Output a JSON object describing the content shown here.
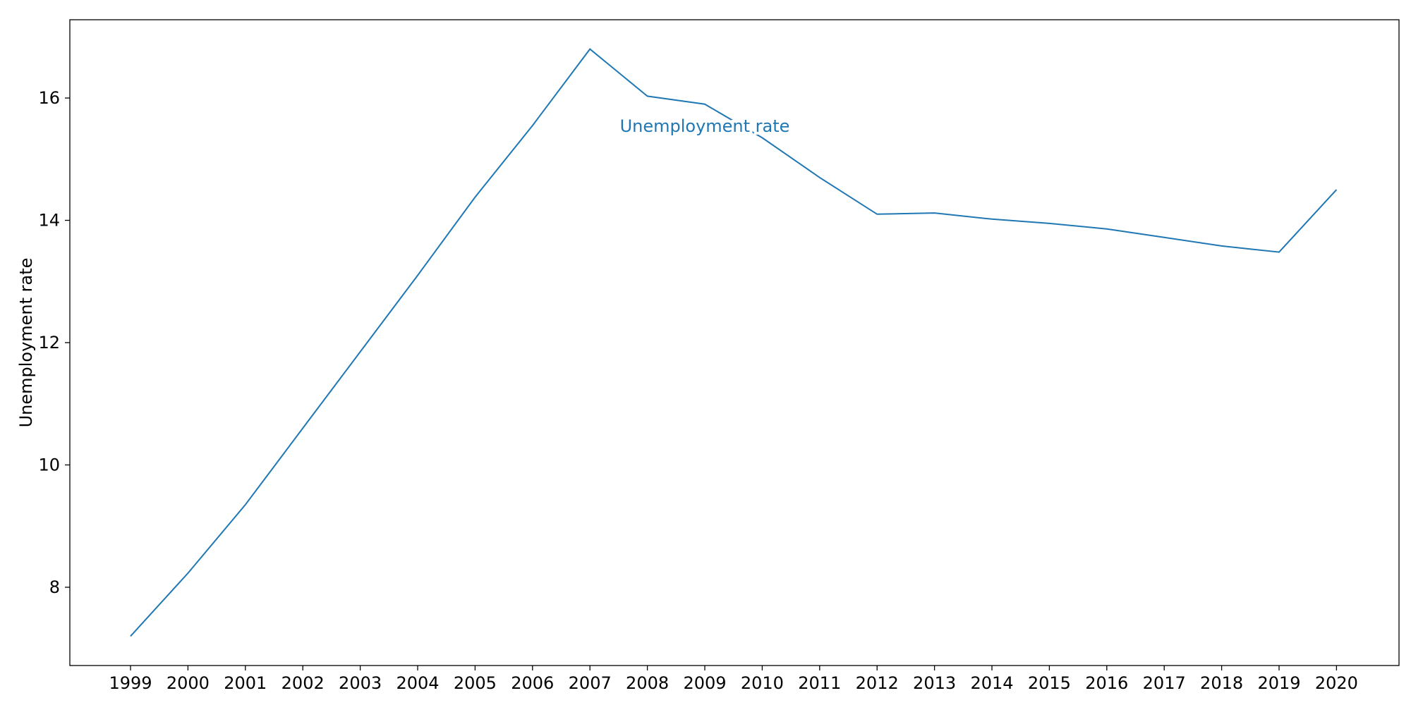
{
  "chart_data": {
    "type": "line",
    "title": "",
    "xlabel": "",
    "ylabel": "Unemployment rate",
    "grid": false,
    "x": [
      "1999",
      "2000",
      "2001",
      "2002",
      "2003",
      "2004",
      "2005",
      "2006",
      "2007",
      "2008",
      "2009",
      "2010",
      "2011",
      "2012",
      "2013",
      "2014",
      "2015",
      "2016",
      "2017",
      "2018",
      "2019",
      "2020"
    ],
    "series": [
      {
        "name": "Unemployment rate",
        "color": "#1f77b4",
        "values": [
          7.2,
          8.23,
          9.35,
          10.6,
          11.85,
          13.1,
          14.38,
          15.55,
          16.8,
          16.03,
          15.9,
          15.35,
          14.7,
          14.1,
          14.12,
          14.02,
          13.95,
          13.86,
          13.72,
          13.58,
          13.48,
          14.5
        ]
      }
    ],
    "ylim": [
      6.72,
      17.28
    ],
    "yticks": [
      8,
      10,
      12,
      14,
      16
    ],
    "annotation": {
      "text": "Unemployment rate",
      "x": "2009",
      "y": 15.55
    }
  }
}
